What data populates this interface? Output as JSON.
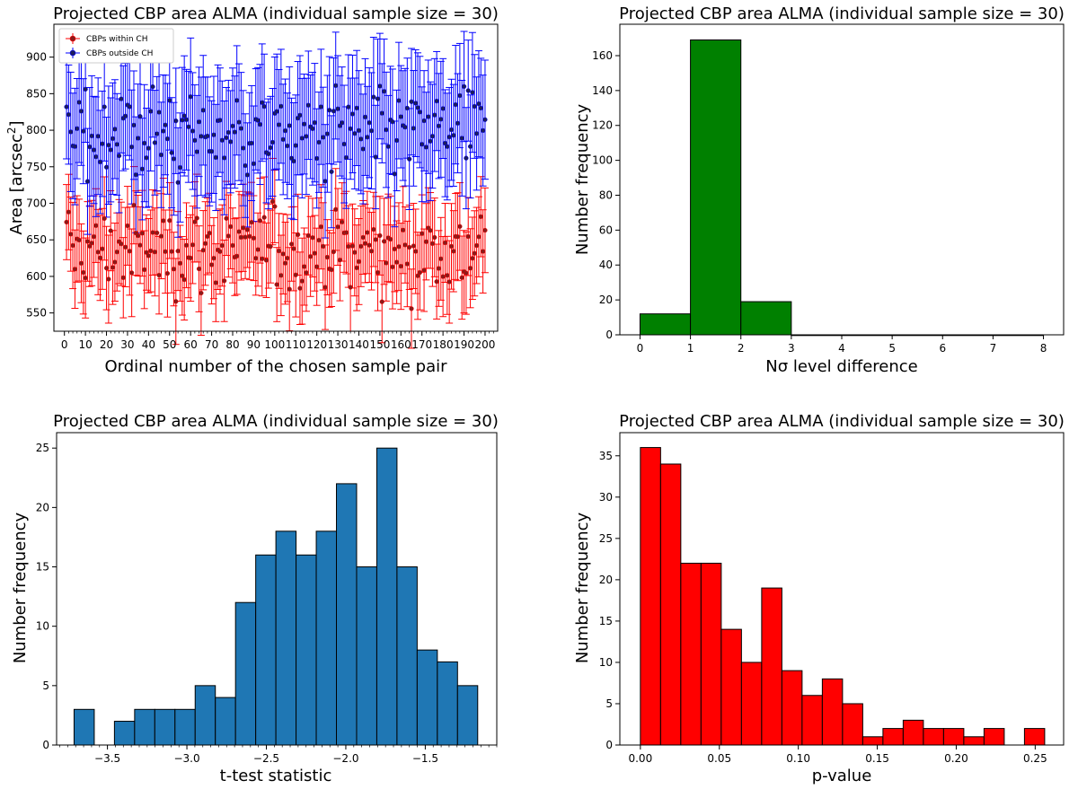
{
  "chart_data": [
    {
      "id": "errorbar",
      "type": "scatter",
      "title": "Projected CBP area ALMA (individual sample size = 30)",
      "xlabel": "Ordinal number of the chosen sample pair",
      "ylabel_prefix": "Area [arcsec",
      "ylabel_sup": "2",
      "ylabel_suffix": "]",
      "xlim": [
        -5,
        206
      ],
      "ylim": [
        525,
        945
      ],
      "xticks": [
        0,
        10,
        20,
        30,
        40,
        50,
        60,
        70,
        80,
        90,
        100,
        110,
        120,
        130,
        140,
        150,
        160,
        170,
        180,
        190,
        200
      ],
      "yticks": [
        550,
        600,
        650,
        700,
        750,
        800,
        850,
        900
      ],
      "legend_position": "top-left",
      "n_points": 200,
      "series": [
        {
          "name": "CBPs within CH",
          "color": "#ff0000",
          "marker_fill": "#8b1a1a",
          "mean": 637,
          "spread": 28,
          "error": 55
        },
        {
          "name": "CBPs outside CH",
          "color": "#0000ff",
          "marker_fill": "#1c1c5e",
          "mean": 795,
          "spread": 30,
          "error": 75
        }
      ]
    },
    {
      "id": "nsigma",
      "type": "bar",
      "title": "Projected CBP area ALMA (individual sample size = 30)",
      "xlabel": "Nσ level difference",
      "ylabel": "Number frequency",
      "xlim": [
        -0.4,
        8.4
      ],
      "ylim": [
        0,
        178
      ],
      "xticks": [
        0,
        1,
        2,
        3,
        4,
        5,
        6,
        7,
        8
      ],
      "yticks": [
        0,
        20,
        40,
        60,
        80,
        100,
        120,
        140,
        160
      ],
      "color": "#008000",
      "bins": [
        {
          "x0": 0,
          "x1": 1,
          "value": 12
        },
        {
          "x0": 1,
          "x1": 2,
          "value": 169
        },
        {
          "x0": 2,
          "x1": 3,
          "value": 19
        },
        {
          "x0": 3,
          "x1": 4,
          "value": 0
        },
        {
          "x0": 4,
          "x1": 5,
          "value": 0
        },
        {
          "x0": 5,
          "x1": 6,
          "value": 0
        },
        {
          "x0": 6,
          "x1": 7,
          "value": 0
        },
        {
          "x0": 7,
          "x1": 8,
          "value": 0
        }
      ]
    },
    {
      "id": "ttest",
      "type": "bar",
      "title": "Projected CBP area ALMA (individual sample size = 30)",
      "xlabel": "t-test statistic",
      "ylabel": "Number frequency",
      "xlim": [
        -3.82,
        -1.05
      ],
      "ylim": [
        0,
        26.3
      ],
      "xticks": [
        -3.5,
        -3.0,
        -2.5,
        -2.0,
        -1.5
      ],
      "xtick_labels": [
        "−3.5",
        "−3.0",
        "−2.5",
        "−2.0",
        "−1.5"
      ],
      "yticks": [
        0,
        5,
        10,
        15,
        20,
        25
      ],
      "color": "#1f77b4",
      "bin_start": -3.71,
      "bin_width": 0.127,
      "values": [
        3,
        0,
        2,
        3,
        3,
        3,
        5,
        4,
        12,
        16,
        18,
        16,
        18,
        22,
        15,
        25,
        15,
        8,
        7,
        5
      ]
    },
    {
      "id": "pvalue",
      "type": "bar",
      "title": "Projected CBP area ALMA (individual sample size = 30)",
      "xlabel": "p-value",
      "ylabel": "Number frequency",
      "xlim": [
        -0.013,
        0.268
      ],
      "ylim": [
        0,
        37.8
      ],
      "xticks": [
        0.0,
        0.05,
        0.1,
        0.15,
        0.2,
        0.25
      ],
      "xtick_labels": [
        "0.00",
        "0.05",
        "0.10",
        "0.15",
        "0.20",
        "0.25"
      ],
      "yticks": [
        0,
        5,
        10,
        15,
        20,
        25,
        30,
        35
      ],
      "color": "#ff0000",
      "bin_start": 0.0,
      "bin_width": 0.0128,
      "values": [
        36,
        34,
        22,
        22,
        14,
        10,
        19,
        9,
        6,
        8,
        5,
        1,
        2,
        3,
        2,
        2,
        1,
        2,
        0,
        2
      ]
    }
  ]
}
